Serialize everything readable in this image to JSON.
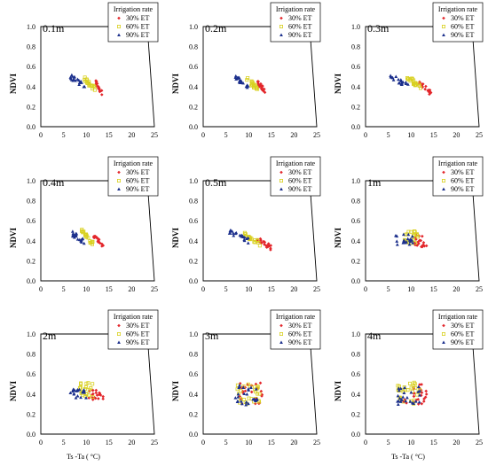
{
  "chart_data": {
    "type": "scatter",
    "layout": "3x3 grid of small multiples",
    "ylabel": "NDVI",
    "xlabel": "Ts -Ta ( °C)",
    "xlim": [
      0,
      25
    ],
    "ylim": [
      0.0,
      1.0
    ],
    "xticks": [
      "0",
      "5",
      "10",
      "15",
      "20",
      "25"
    ],
    "yticks": [
      "0.0",
      "0.2",
      "0.4",
      "0.6",
      "0.8",
      "1.0"
    ],
    "legend": {
      "title": "Irrigation rate",
      "placement": "top-right",
      "entries": [
        {
          "label": "30% ET",
          "color": "#e3262b",
          "marker": "diamond"
        },
        {
          "label": "60% ET",
          "color": "#d8d020",
          "marker": "square"
        },
        {
          "label": "90% ET",
          "color": "#1b2f8c",
          "marker": "triangle"
        }
      ]
    },
    "panels": [
      {
        "label": "0.1m",
        "shape": "cluster-diagonal",
        "series": [
          {
            "name": "30% ET",
            "x": [
              12.0,
              13.5
            ],
            "y": [
              0.33,
              0.45
            ]
          },
          {
            "name": "60% ET",
            "x": [
              9.5,
              12.0
            ],
            "y": [
              0.37,
              0.48
            ]
          },
          {
            "name": "90% ET",
            "x": [
              6.5,
              10.0
            ],
            "y": [
              0.4,
              0.5
            ]
          }
        ]
      },
      {
        "label": "0.2m",
        "shape": "cluster-diagonal",
        "series": [
          {
            "name": "30% ET",
            "x": [
              12.0,
              14.0
            ],
            "y": [
              0.34,
              0.44
            ]
          },
          {
            "name": "60% ET",
            "x": [
              9.5,
              12.0
            ],
            "y": [
              0.37,
              0.48
            ]
          },
          {
            "name": "90% ET",
            "x": [
              7.0,
              10.0
            ],
            "y": [
              0.4,
              0.5
            ]
          }
        ]
      },
      {
        "label": "0.3m",
        "shape": "cluster-diagonal",
        "series": [
          {
            "name": "30% ET",
            "x": [
              11.5,
              14.5
            ],
            "y": [
              0.33,
              0.45
            ]
          },
          {
            "name": "60% ET",
            "x": [
              9.0,
              12.5
            ],
            "y": [
              0.38,
              0.5
            ]
          },
          {
            "name": "90% ET",
            "x": [
              5.5,
              9.5
            ],
            "y": [
              0.4,
              0.51
            ]
          }
        ]
      },
      {
        "label": "0.4m",
        "shape": "cluster-diagonal",
        "series": [
          {
            "name": "30% ET",
            "x": [
              11.5,
              14.0
            ],
            "y": [
              0.33,
              0.46
            ]
          },
          {
            "name": "60% ET",
            "x": [
              9.0,
              11.5
            ],
            "y": [
              0.37,
              0.5
            ]
          },
          {
            "name": "90% ET",
            "x": [
              7.0,
              10.0
            ],
            "y": [
              0.38,
              0.47
            ]
          }
        ]
      },
      {
        "label": "0.5m",
        "shape": "cluster-diagonal",
        "series": [
          {
            "name": "30% ET",
            "x": [
              11.5,
              15.0
            ],
            "y": [
              0.33,
              0.43
            ]
          },
          {
            "name": "60% ET",
            "x": [
              9.0,
              12.5
            ],
            "y": [
              0.37,
              0.47
            ]
          },
          {
            "name": "90% ET",
            "x": [
              5.5,
              10.0
            ],
            "y": [
              0.4,
              0.5
            ]
          }
        ]
      },
      {
        "label": "1m",
        "shape": "cluster-round",
        "series": [
          {
            "name": "30% ET",
            "x": [
              10.5,
              13.5
            ],
            "y": [
              0.34,
              0.46
            ]
          },
          {
            "name": "60% ET",
            "x": [
              8.5,
              12.0
            ],
            "y": [
              0.36,
              0.5
            ]
          },
          {
            "name": "90% ET",
            "x": [
              6.5,
              10.5
            ],
            "y": [
              0.36,
              0.47
            ]
          }
        ]
      },
      {
        "label": "2m",
        "shape": "cluster-round",
        "series": [
          {
            "name": "30% ET",
            "x": [
              10.5,
              14.0
            ],
            "y": [
              0.34,
              0.44
            ]
          },
          {
            "name": "60% ET",
            "x": [
              8.5,
              11.5
            ],
            "y": [
              0.37,
              0.52
            ]
          },
          {
            "name": "90% ET",
            "x": [
              6.5,
              10.0
            ],
            "y": [
              0.36,
              0.45
            ]
          }
        ]
      },
      {
        "label": "3m",
        "shape": "block",
        "series": [
          {
            "name": "30% ET",
            "x": [
              8.0,
              13.0
            ],
            "y": [
              0.3,
              0.52
            ]
          },
          {
            "name": "60% ET",
            "x": [
              7.5,
              12.5
            ],
            "y": [
              0.3,
              0.52
            ]
          },
          {
            "name": "90% ET",
            "x": [
              7.0,
              12.0
            ],
            "y": [
              0.29,
              0.5
            ]
          }
        ]
      },
      {
        "label": "4m",
        "shape": "block",
        "series": [
          {
            "name": "30% ET",
            "x": [
              8.0,
              13.5
            ],
            "y": [
              0.3,
              0.51
            ]
          },
          {
            "name": "60% ET",
            "x": [
              7.0,
              12.0
            ],
            "y": [
              0.3,
              0.52
            ]
          },
          {
            "name": "90% ET",
            "x": [
              7.0,
              12.0
            ],
            "y": [
              0.29,
              0.48
            ]
          }
        ]
      }
    ]
  }
}
